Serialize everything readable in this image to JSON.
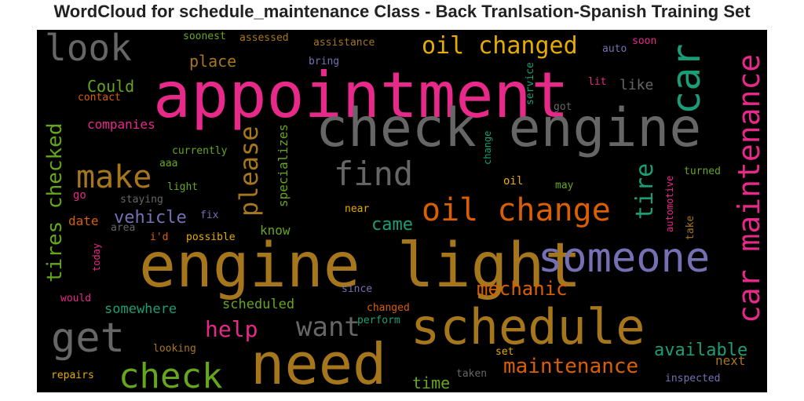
{
  "title": "WordCloud for schedule_maintenance Class - Back Tranlsation-Spanish Training Set",
  "words": [
    {
      "text": "appointment",
      "color": "#e7298a"
    },
    {
      "text": "engine light",
      "color": "#a6761d"
    },
    {
      "text": "check engine",
      "color": "#666666"
    },
    {
      "text": "need",
      "color": "#a6761d"
    },
    {
      "text": "schedule",
      "color": "#a6761d"
    },
    {
      "text": "someone",
      "color": "#7570b3"
    },
    {
      "text": "car maintenance",
      "color": "#e7298a"
    },
    {
      "text": "car",
      "color": "#1b9e77"
    },
    {
      "text": "look",
      "color": "#666666"
    },
    {
      "text": "get",
      "color": "#666666"
    },
    {
      "text": "check",
      "color": "#66a61e"
    },
    {
      "text": "oil change",
      "color": "#d95f02"
    },
    {
      "text": "find",
      "color": "#666666"
    },
    {
      "text": "make",
      "color": "#a6761d"
    },
    {
      "text": "please",
      "color": "#a6761d"
    },
    {
      "text": "oil changed",
      "color": "#e6ab02"
    },
    {
      "text": "tires checked",
      "color": "#66a61e"
    },
    {
      "text": "tire",
      "color": "#1b9e77"
    },
    {
      "text": "want",
      "color": "#666666"
    },
    {
      "text": "help",
      "color": "#e7298a"
    },
    {
      "text": "maintenance",
      "color": "#d95f02"
    },
    {
      "text": "mechanic",
      "color": "#d95f02"
    },
    {
      "text": "available",
      "color": "#1b9e77"
    },
    {
      "text": "came",
      "color": "#1b9e77"
    },
    {
      "text": "vehicle",
      "color": "#7570b3"
    },
    {
      "text": "Could",
      "color": "#66a61e"
    },
    {
      "text": "place",
      "color": "#a6761d"
    },
    {
      "text": "time",
      "color": "#66a61e"
    },
    {
      "text": "scheduled",
      "color": "#66a61e"
    },
    {
      "text": "somewhere",
      "color": "#1b9e77"
    },
    {
      "text": "companies",
      "color": "#e7298a"
    },
    {
      "text": "specializes",
      "color": "#66a61e"
    },
    {
      "text": "date",
      "color": "#d95f02"
    },
    {
      "text": "know",
      "color": "#66a61e"
    },
    {
      "text": "like",
      "color": "#666666"
    },
    {
      "text": "next",
      "color": "#a6761d"
    },
    {
      "text": "soonest",
      "color": "#66a61e"
    },
    {
      "text": "assessed",
      "color": "#a6761d"
    },
    {
      "text": "assistance",
      "color": "#a6761d"
    },
    {
      "text": "auto",
      "color": "#7570b3"
    },
    {
      "text": "soon",
      "color": "#e7298a"
    },
    {
      "text": "bring",
      "color": "#7570b3"
    },
    {
      "text": "service",
      "color": "#1b9e77"
    },
    {
      "text": "lit",
      "color": "#e7298a"
    },
    {
      "text": "contact",
      "color": "#d95f02"
    },
    {
      "text": "got",
      "color": "#666666"
    },
    {
      "text": "change",
      "color": "#1b9e77"
    },
    {
      "text": "currently",
      "color": "#66a61e"
    },
    {
      "text": "aaa",
      "color": "#66a61e"
    },
    {
      "text": "light",
      "color": "#66a61e"
    },
    {
      "text": "go",
      "color": "#e7298a"
    },
    {
      "text": "staying",
      "color": "#666666"
    },
    {
      "text": "oil",
      "color": "#e6ab02"
    },
    {
      "text": "may",
      "color": "#66a61e"
    },
    {
      "text": "turned",
      "color": "#66a61e"
    },
    {
      "text": "automotive",
      "color": "#e7298a"
    },
    {
      "text": "fix",
      "color": "#7570b3"
    },
    {
      "text": "near",
      "color": "#e6ab02"
    },
    {
      "text": "take",
      "color": "#a6761d"
    },
    {
      "text": "area",
      "color": "#666666"
    },
    {
      "text": "i'd",
      "color": "#d95f02"
    },
    {
      "text": "possible",
      "color": "#e6ab02"
    },
    {
      "text": "today",
      "color": "#e7298a"
    },
    {
      "text": "would",
      "color": "#e7298a"
    },
    {
      "text": "since",
      "color": "#7570b3"
    },
    {
      "text": "changed",
      "color": "#d95f02"
    },
    {
      "text": "perform",
      "color": "#1b9e77"
    },
    {
      "text": "looking",
      "color": "#a6761d"
    },
    {
      "text": "set",
      "color": "#e6ab02"
    },
    {
      "text": "repairs",
      "color": "#e6ab02"
    },
    {
      "text": "taken",
      "color": "#666666"
    },
    {
      "text": "inspected",
      "color": "#7570b3"
    }
  ]
}
